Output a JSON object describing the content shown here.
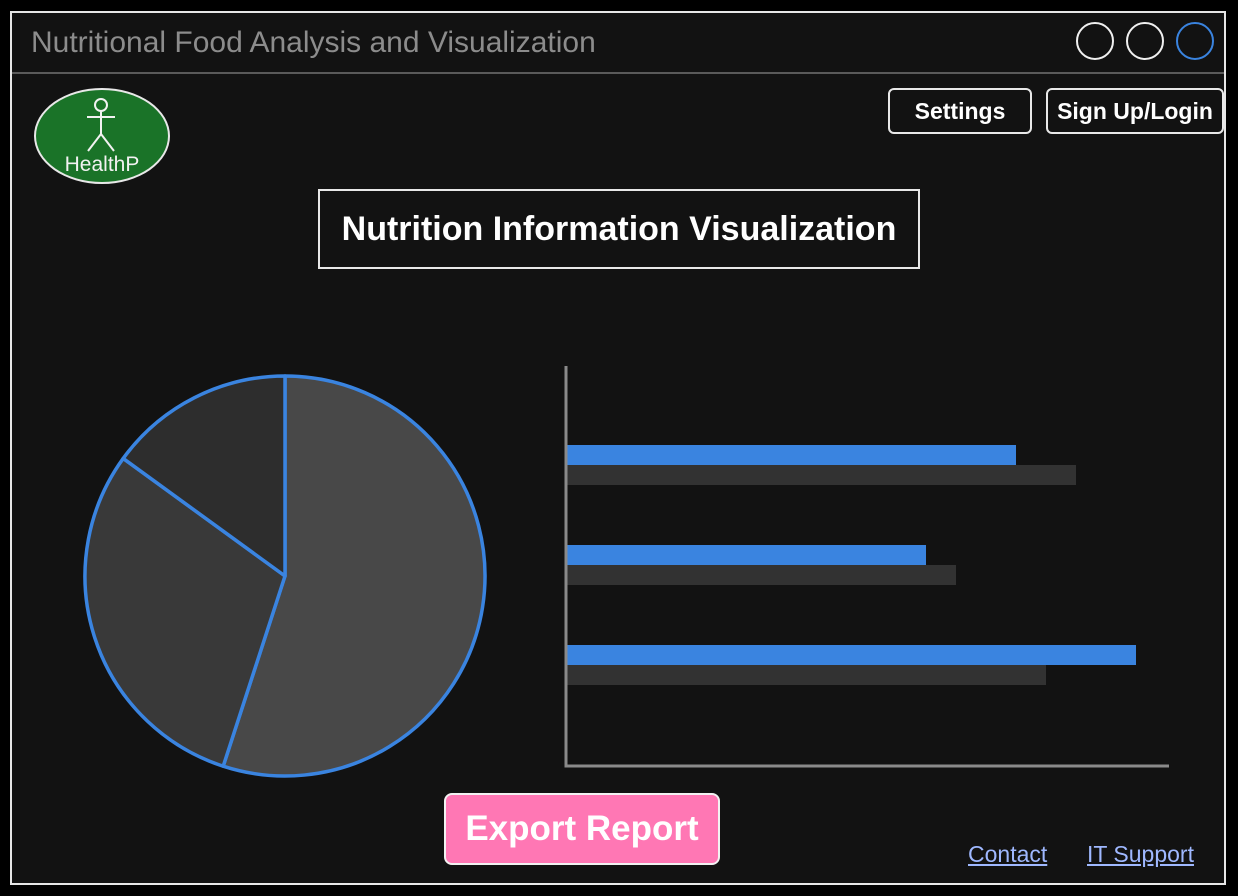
{
  "window": {
    "title": "Nutritional Food Analysis and Visualization",
    "controls": [
      "window-control",
      "window-control",
      "window-control"
    ]
  },
  "logo": {
    "text": "HealthP",
    "icon": "person-icon",
    "color": "#1a7328"
  },
  "header": {
    "settings_label": "Settings",
    "signup_label": "Sign Up/Login"
  },
  "page": {
    "title": "Nutrition Information Visualization"
  },
  "colors": {
    "accent": "#3a84e0",
    "background": "#121212",
    "export_button": "#ff77b4",
    "link": "#9fb8ff"
  },
  "chart_data": [
    {
      "type": "pie",
      "values": [
        55,
        30,
        15
      ],
      "colors": [
        "#484848",
        "#393939",
        "#2d2d2d"
      ],
      "title": "",
      "stroke_color": "#3a84e0"
    },
    {
      "type": "bar",
      "orientation": "horizontal",
      "title": "",
      "xlabel": "",
      "ylabel": "",
      "xlim": [
        0,
        100
      ],
      "series": [
        {
          "values": [
            75,
            60,
            95
          ],
          "color": "#3a84e0"
        },
        {
          "values": [
            85,
            65,
            80
          ],
          "color": "#323232"
        }
      ]
    }
  ],
  "actions": {
    "export_label": "Export Report"
  },
  "footer": {
    "contact_label": "Contact",
    "it_support_label": "IT Support"
  }
}
